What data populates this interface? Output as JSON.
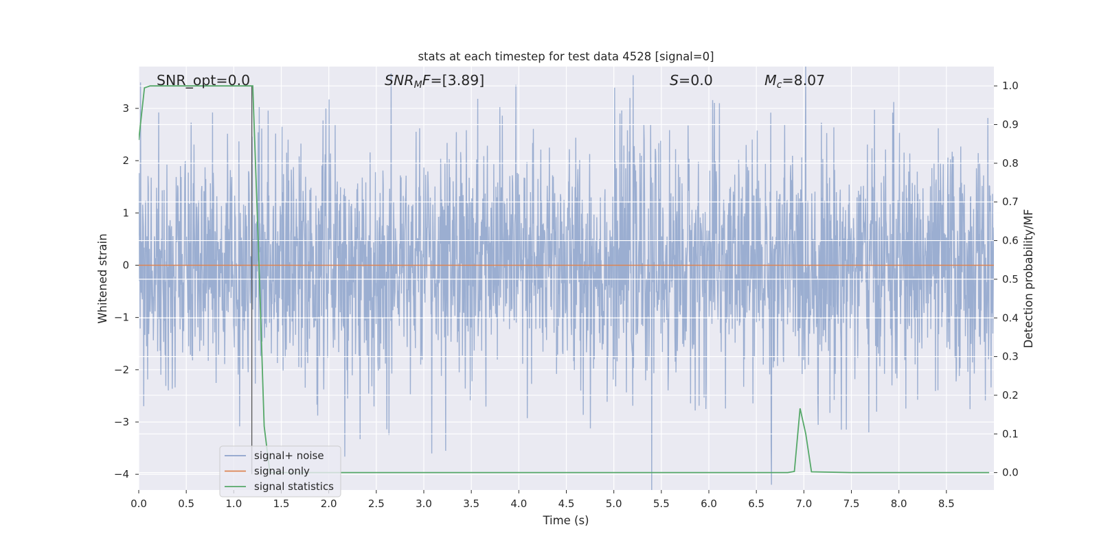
{
  "chart_data": {
    "type": "line",
    "title": "stats at each timestep for test data 4528 [signal=0]",
    "xlabel": "Time (s)",
    "ylabel_left": "Whitened strain",
    "ylabel_right": "Detection probability/MF",
    "xlim": [
      0.0,
      9.0
    ],
    "ylim_left": [
      -4.3,
      3.8
    ],
    "ylim_right": [
      -0.045,
      1.05
    ],
    "xticks": [
      "0.0",
      "0.5",
      "1.0",
      "1.5",
      "2.0",
      "2.5",
      "3.0",
      "3.5",
      "4.0",
      "4.5",
      "5.0",
      "5.5",
      "6.0",
      "6.5",
      "7.0",
      "7.5",
      "8.0",
      "8.5"
    ],
    "xtick_values": [
      0.0,
      0.5,
      1.0,
      1.5,
      2.0,
      2.5,
      3.0,
      3.5,
      4.0,
      4.5,
      5.0,
      5.5,
      6.0,
      6.5,
      7.0,
      7.5,
      8.0,
      8.5
    ],
    "yticks_left": [
      "3",
      "2",
      "1",
      "0",
      "−1",
      "−2",
      "−3",
      "−4"
    ],
    "ytick_values_left": [
      3,
      2,
      1,
      0,
      -1,
      -2,
      -3,
      -4
    ],
    "yticks_right": [
      "1.0",
      "0.9",
      "0.8",
      "0.7",
      "0.6",
      "0.5",
      "0.4",
      "0.3",
      "0.2",
      "0.1",
      "0.0"
    ],
    "ytick_values_right": [
      1.0,
      0.9,
      0.8,
      0.7,
      0.6,
      0.5,
      0.4,
      0.3,
      0.2,
      0.1,
      0.0
    ],
    "grid": true,
    "legend_placement": "lower-left",
    "annotations": [
      {
        "text": "SNR_opt=0.0",
        "x": 0.2,
        "y": 3.5
      },
      {
        "text": "SNRMF=[3.89]",
        "x": 2.6,
        "y": 3.5
      },
      {
        "text": "S=0.0",
        "x": 5.6,
        "y": 3.5
      },
      {
        "text": "Mc=8.07",
        "x": 6.6,
        "y": 3.5
      }
    ],
    "series": [
      {
        "name": "signal+ noise",
        "color": "#4c72b0",
        "axis": "left",
        "description_values": {
          "x_range": [
            0.0,
            9.0
          ],
          "typical_amplitude": 1.2,
          "peaks": [
            {
              "x": 3.97,
              "y": 3.45
            },
            {
              "x": 5.17,
              "y": 3.2
            },
            {
              "x": 3.23,
              "y": -3.55
            },
            {
              "x": 5.4,
              "y": -4.3
            },
            {
              "x": 6.66,
              "y": -4.2
            },
            {
              "x": 6.11,
              "y": 3.1
            },
            {
              "x": 1.97,
              "y": 3.0
            }
          ]
        }
      },
      {
        "name": "signal only",
        "color": "#dd8452",
        "axis": "left",
        "x": [
          0.0,
          9.0
        ],
        "y": [
          0.0,
          0.0
        ]
      },
      {
        "name": "signal statistics",
        "color": "#55a868",
        "axis": "right",
        "x": [
          0.0,
          0.06,
          0.12,
          0.18,
          0.24,
          0.3,
          0.36,
          0.42,
          0.48,
          0.54,
          0.6,
          0.66,
          0.72,
          0.78,
          0.84,
          0.9,
          0.96,
          1.02,
          1.08,
          1.14,
          1.2,
          1.26,
          1.32,
          1.38,
          1.44,
          1.5,
          2.0,
          3.0,
          4.0,
          5.0,
          6.0,
          6.5,
          6.83,
          6.9,
          6.96,
          7.02,
          7.08,
          7.5,
          8.0,
          8.5,
          8.95
        ],
        "y": [
          0.86,
          0.995,
          1.0,
          1.0,
          1.0,
          1.0,
          1.0,
          1.0,
          1.0,
          1.0,
          1.0,
          1.0,
          1.0,
          1.0,
          1.0,
          1.0,
          1.0,
          1.0,
          1.0,
          1.0,
          1.0,
          0.58,
          0.12,
          0.0,
          0.0,
          0.0,
          0.0,
          0.0,
          0.0,
          0.0,
          0.0,
          0.0,
          0.0,
          0.003,
          0.166,
          0.1,
          0.002,
          0.0,
          0.0,
          0.0,
          0.0
        ]
      }
    ]
  }
}
